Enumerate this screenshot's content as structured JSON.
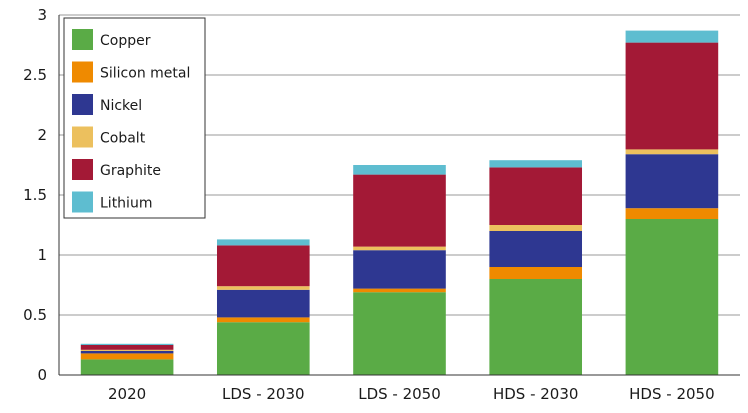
{
  "chart_data": {
    "type": "bar",
    "stacked": true,
    "title": "",
    "xlabel": "",
    "ylabel": "",
    "categories": [
      "2020",
      "LDS - 2030",
      "LDS - 2050",
      "HDS - 2030",
      "HDS - 2050"
    ],
    "ylim": [
      0,
      3
    ],
    "yticks": [
      0,
      0.5,
      1,
      1.5,
      2,
      2.5,
      3
    ],
    "ytick_labels": [
      "0",
      "0.5",
      "1",
      "1.5",
      "2",
      "2.5",
      "3"
    ],
    "grid": "horizontal",
    "legend_position": "top-left",
    "series": [
      {
        "name": "Copper",
        "color": "#5aab46",
        "values": [
          0.13,
          0.44,
          0.69,
          0.8,
          1.3
        ]
      },
      {
        "name": "Silicon metal",
        "color": "#ef8a00",
        "values": [
          0.05,
          0.04,
          0.03,
          0.1,
          0.09
        ]
      },
      {
        "name": "Nickel",
        "color": "#2e3791",
        "values": [
          0.02,
          0.23,
          0.32,
          0.3,
          0.45
        ]
      },
      {
        "name": "Cobalt",
        "color": "#ecc05e",
        "values": [
          0.01,
          0.03,
          0.03,
          0.05,
          0.04
        ]
      },
      {
        "name": "Graphite",
        "color": "#a31936",
        "values": [
          0.04,
          0.34,
          0.6,
          0.48,
          0.89
        ]
      },
      {
        "name": "Lithium",
        "color": "#5ebdd0",
        "values": [
          0.01,
          0.05,
          0.08,
          0.06,
          0.1
        ]
      }
    ]
  }
}
